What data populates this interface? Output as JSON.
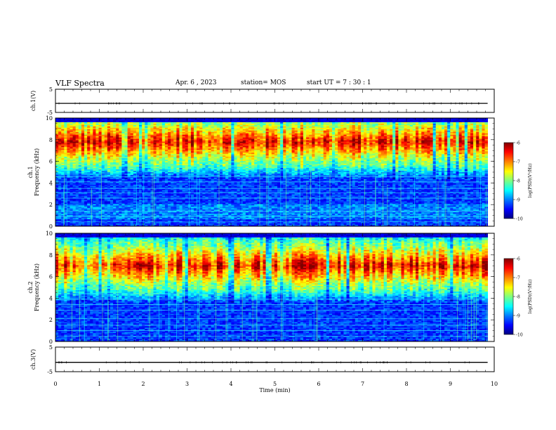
{
  "header": {
    "title": "VLF Spectra",
    "date": "Apr. 6 , 2023",
    "station": "station= MOS",
    "start": "start UT = 7 : 30 : 1"
  },
  "chart_data": [
    {
      "type": "line",
      "name": "waveform-ch1",
      "ylabel": "ch.1(V)",
      "ylim": [
        -5,
        5
      ],
      "yticks": [
        "5",
        "-5"
      ],
      "xlim": [
        0,
        10
      ],
      "level": -1.1
    },
    {
      "type": "heatmap",
      "name": "spectrogram-ch1",
      "ylabel": "ch.1\nFrequency (kHz)",
      "ylim": [
        0,
        10
      ],
      "yticks": [
        "0",
        "2",
        "4",
        "6",
        "8",
        "10"
      ],
      "xlim": [
        0,
        10
      ],
      "data_end_min": 9.85,
      "band_center_khz": 7.8,
      "colorbar": {
        "label": "log(PSD)(V²/Hz)",
        "range": [
          -10,
          -6
        ],
        "ticks": [
          "-6",
          "-7",
          "-8",
          "-9",
          "-10"
        ]
      }
    },
    {
      "type": "heatmap",
      "name": "spectrogram-ch2",
      "ylabel": "ch.2\nFrequency (kHz)",
      "ylim": [
        0,
        10
      ],
      "yticks": [
        "0",
        "2",
        "4",
        "6",
        "8",
        "10"
      ],
      "xlim": [
        0,
        10
      ],
      "data_end_min": 9.85,
      "band_center_khz": 7.0,
      "colorbar": {
        "label": "log(PSD)(V²/Hz)",
        "range": [
          -10,
          -6
        ],
        "ticks": [
          "-6",
          "-7",
          "-8",
          "-9",
          "-10"
        ]
      }
    },
    {
      "type": "line",
      "name": "waveform-ch3",
      "ylabel": "ch.3(V)",
      "ylim": [
        -5,
        5
      ],
      "yticks": [
        "5",
        "-5"
      ],
      "xlim": [
        0,
        10
      ],
      "level": -1.2,
      "xlabel": "Time (min)",
      "xticks": [
        "0",
        "1",
        "2",
        "3",
        "4",
        "5",
        "6",
        "7",
        "8",
        "9",
        "10"
      ]
    }
  ],
  "colors": {
    "colormap": [
      "#00007f",
      "#0000ff",
      "#007fff",
      "#00ffff",
      "#7fff7f",
      "#ffff00",
      "#ff7f00",
      "#ff0000",
      "#7f0000"
    ],
    "background": "#ffffff",
    "axis": "#000000"
  }
}
